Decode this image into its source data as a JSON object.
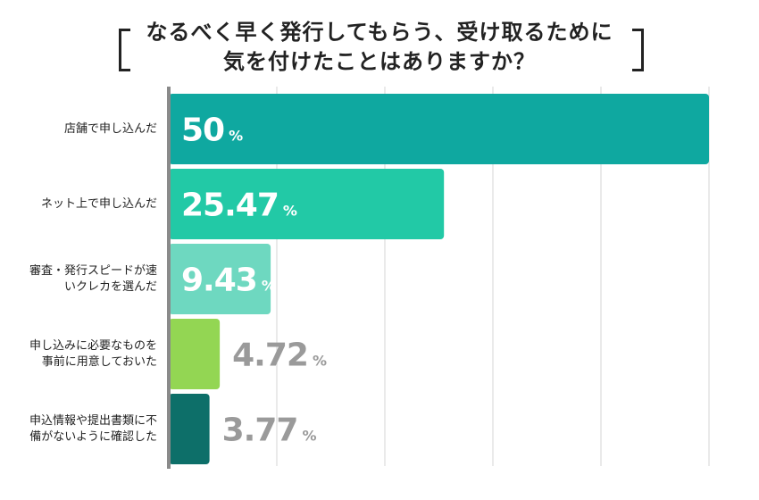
{
  "title_line1": "なるべく早く発行してもらう、受け取るために",
  "title_line2": "気を付けたことはありますか？",
  "chart_data": {
    "type": "bar",
    "orientation": "horizontal",
    "title": "なるべく早く発行してもらう、受け取るために気を付けたことはありますか？",
    "categories": [
      "店舗で申し込んだ",
      "ネット上で申し込んだ",
      "審査・発行スピードが速\nいクレカを選んだ",
      "申し込みに必要なものを\n事前に用意しておいた",
      "申込情報や提出書類に不\n備がないように確認した"
    ],
    "values": [
      50,
      25.47,
      9.43,
      4.72,
      3.77
    ],
    "value_labels": [
      "50",
      "25.47",
      "9.43",
      "4.72",
      "3.77"
    ],
    "unit": "%",
    "colors": [
      "#0fa8a0",
      "#22c9a6",
      "#6ed8c0",
      "#93d653",
      "#0d6f69"
    ],
    "xlim": [
      0,
      50
    ],
    "grid": true
  }
}
